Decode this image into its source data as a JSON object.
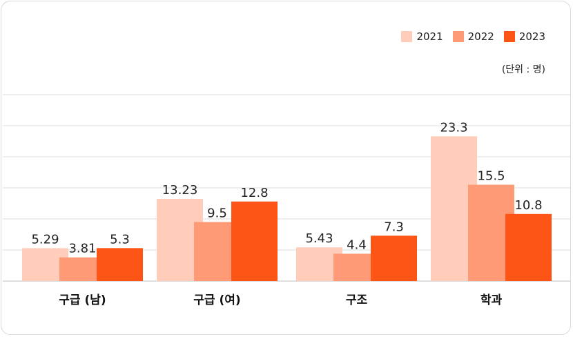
{
  "chart_data": {
    "type": "bar",
    "categories": [
      "구급 (남)",
      "구급 (여)",
      "구조",
      "학과"
    ],
    "series": [
      {
        "name": "2021",
        "values": [
          5.29,
          13.23,
          5.43,
          23.3
        ],
        "labels": [
          "5.29",
          "13.23",
          "5.43",
          "23.3"
        ],
        "color": "#FFCDB9"
      },
      {
        "name": "2022",
        "values": [
          3.81,
          9.5,
          4.4,
          15.5
        ],
        "labels": [
          "3.81",
          "9.5",
          "4.4",
          "15.5"
        ],
        "color": "#FF9A76"
      },
      {
        "name": "2023",
        "values": [
          5.3,
          12.8,
          7.3,
          10.8
        ],
        "labels": [
          "5.3",
          "12.8",
          "7.3",
          "10.8"
        ],
        "color": "#FC5516"
      }
    ],
    "unit": "(단위 : 명)",
    "ylim": [
      0,
      30
    ],
    "grid": true
  }
}
